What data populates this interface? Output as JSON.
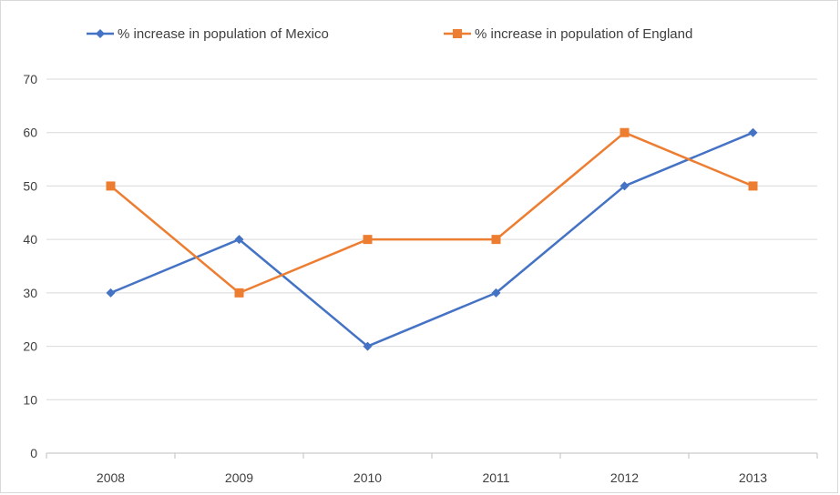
{
  "chart_data": {
    "type": "line",
    "title": "",
    "xlabel": "",
    "ylabel": "",
    "categories": [
      "2008",
      "2009",
      "2010",
      "2011",
      "2012",
      "2013"
    ],
    "ylim": [
      0,
      70
    ],
    "yticks": [
      0,
      10,
      20,
      30,
      40,
      50,
      60,
      70
    ],
    "grid": "horizontal",
    "legend_position": "top",
    "series": [
      {
        "name": "% increase in population of Mexico",
        "values": [
          30,
          40,
          20,
          30,
          50,
          60
        ],
        "color": "#4472c4",
        "marker": "diamond"
      },
      {
        "name": "% increase in population of England",
        "values": [
          50,
          30,
          40,
          40,
          60,
          50
        ],
        "color": "#ed7d31",
        "marker": "square"
      }
    ]
  }
}
